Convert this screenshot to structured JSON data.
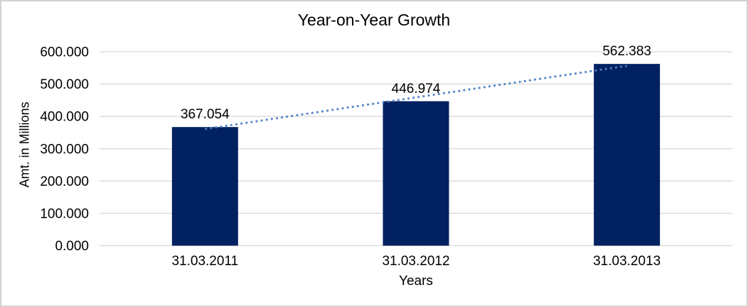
{
  "window": {
    "background": "#ffffff",
    "border_color": "#d2d2d2"
  },
  "chart_data": {
    "type": "bar",
    "title": "Year-on-Year Growth",
    "xlabel": "Years",
    "ylabel": "Amt. in Millions",
    "categories": [
      "31.03.2011",
      "31.03.2012",
      "31.03.2013"
    ],
    "values": [
      367.054,
      446.974,
      562.383
    ],
    "data_labels": [
      "367.054",
      "446.974",
      "562.383"
    ],
    "ylim": [
      0,
      600
    ],
    "ytick_step": 100,
    "ytick_labels": [
      "0.000",
      "100.000",
      "200.000",
      "300.000",
      "400.000",
      "500.000",
      "600.000"
    ],
    "grid": true,
    "legend_position": "none",
    "bar_color": "#022161",
    "gridline_color": "#d9d9d9",
    "text_color": "#000000",
    "trendline": {
      "type": "linear",
      "style": "dotted",
      "color": "#4e82c6"
    }
  }
}
